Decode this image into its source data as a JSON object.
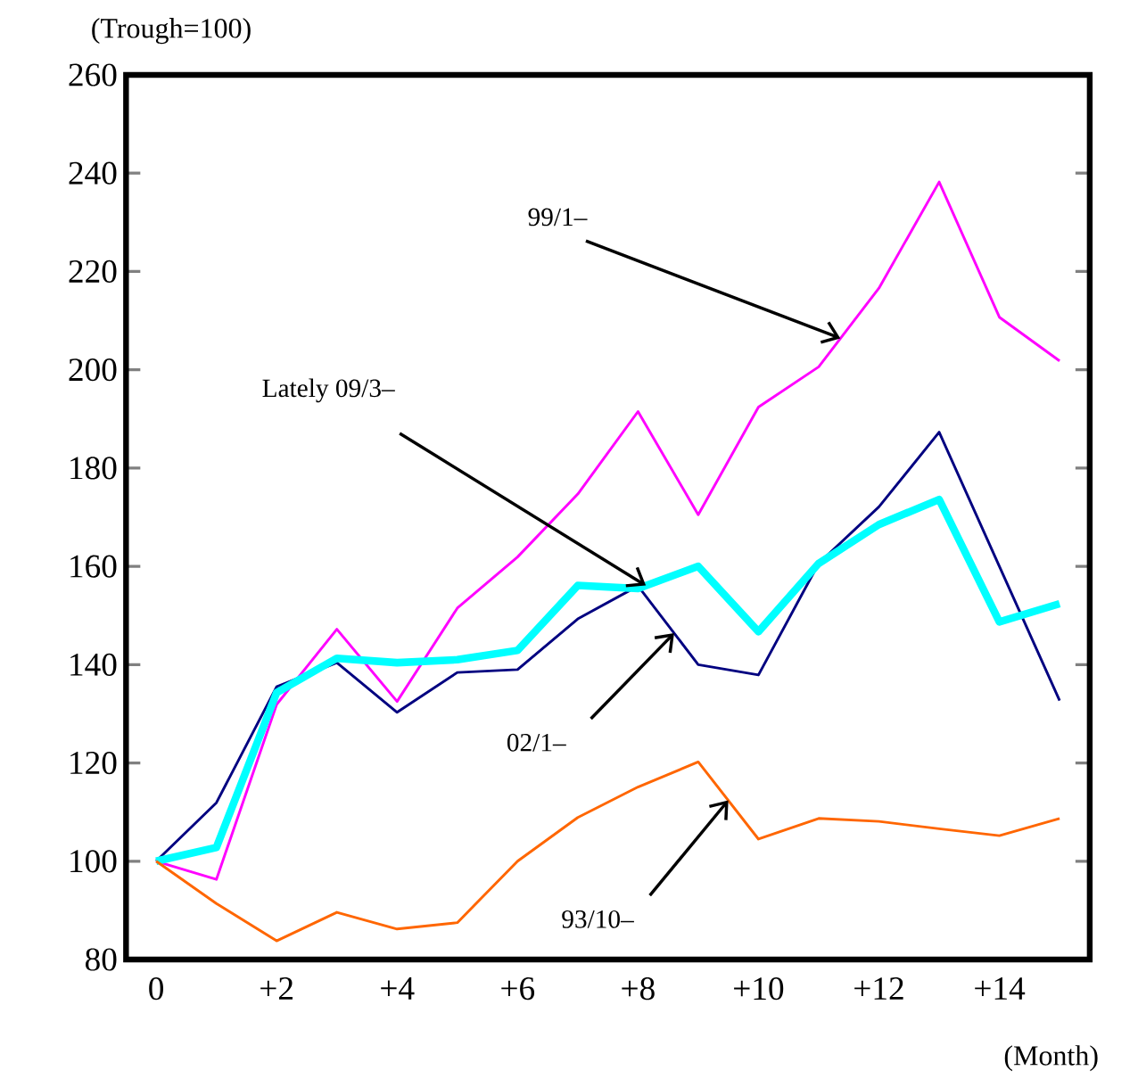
{
  "chart_data": {
    "type": "line",
    "ylabel": "(Trough=100)",
    "xlabel": "(Month)",
    "x": [
      0,
      1,
      2,
      3,
      4,
      5,
      6,
      7,
      8,
      9,
      10,
      11,
      12,
      13,
      14,
      15
    ],
    "series": [
      {
        "color": "#ff00ff",
        "values": [
          100,
          96.3,
          131.9,
          147.2,
          132.5,
          151.5,
          161.9,
          174.7,
          191.5,
          170.5,
          192.4,
          200.6,
          216.6,
          238.2,
          210.7,
          201.8
        ]
      },
      {
        "color": "#000080",
        "values": [
          100,
          111.9,
          135.5,
          140.4,
          130.3,
          138.4,
          139,
          149.3,
          156,
          140,
          137.9,
          160.6,
          172.1,
          187.3,
          160,
          132.7
        ]
      },
      {
        "color": "#00ffff",
        "values": [
          100,
          102.8,
          134.3,
          141.3,
          140.4,
          141,
          142.9,
          156.1,
          155.5,
          160,
          146.7,
          160.6,
          168.5,
          173.6,
          148.7,
          152.4
        ]
      },
      {
        "color": "#ff6600",
        "values": [
          100,
          91.4,
          83.8,
          89.6,
          86.2,
          87.5,
          100,
          108.9,
          115.1,
          120.2,
          104.5,
          108.7,
          108.1,
          106.6,
          105.2,
          108.7
        ]
      }
    ],
    "xlim": [
      -0.5,
      15.5
    ],
    "ylim": [
      80,
      260
    ],
    "xticks": [
      0,
      {
        "value": 2,
        "label": "+2"
      },
      {
        "value": 4,
        "label": "+4"
      },
      {
        "value": 6,
        "label": "+6"
      },
      {
        "value": 8,
        "label": "+8"
      },
      {
        "value": 10,
        "label": "+10"
      },
      {
        "value": 12,
        "label": "+12"
      },
      {
        "value": 14,
        "label": "+14"
      }
    ],
    "yticks": [
      80,
      100,
      120,
      140,
      160,
      180,
      200,
      220,
      240,
      260
    ],
    "grid": false,
    "marker": "none",
    "line_style": "solid",
    "annotations": [
      {
        "text": "99/1–",
        "x": 11.36,
        "y": 206.4
      },
      {
        "text": "Lately 09/3–",
        "x": 8.13,
        "y": 156.1
      },
      {
        "text": "02/1–",
        "x": 8.6,
        "y": 146.4
      },
      {
        "text": "93/10–",
        "x": 9.5,
        "y": 112.4
      }
    ]
  }
}
